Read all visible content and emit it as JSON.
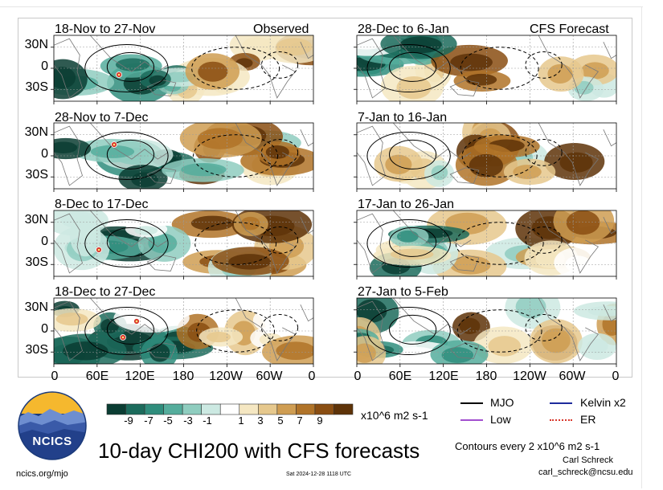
{
  "panels": [
    {
      "title": "18-Nov to 27-Nov",
      "tag": "Observed",
      "seed": 11,
      "bias": -0.9
    },
    {
      "title": "28-Dec to 6-Jan",
      "tag": "CFS Forecast",
      "seed": 21,
      "bias": 0.3
    },
    {
      "title": "28-Nov to 7-Dec",
      "tag": "",
      "seed": 31,
      "bias": -0.7
    },
    {
      "title": "7-Jan to 16-Jan",
      "tag": "",
      "seed": 41,
      "bias": 0.4
    },
    {
      "title": "8-Dec to 17-Dec",
      "tag": "",
      "seed": 51,
      "bias": -0.5
    },
    {
      "title": "17-Jan to 26-Jan",
      "tag": "",
      "seed": 61,
      "bias": 0.6
    },
    {
      "title": "18-Dec to 27-Dec",
      "tag": "",
      "seed": 71,
      "bias": -0.2
    },
    {
      "title": "27-Jan to 5-Feb",
      "tag": "",
      "seed": 81,
      "bias": 0.7
    }
  ],
  "y_ticks": [
    "30N",
    "0",
    "30S"
  ],
  "x_ticks": [
    "0",
    "60E",
    "120E",
    "180",
    "120W",
    "60W",
    "0"
  ],
  "colorbar": {
    "labels": [
      "-9",
      "-7",
      "-5",
      "-3",
      "-1",
      "1",
      "3",
      "5",
      "7",
      "9"
    ],
    "colors": [
      "#0b3d33",
      "#1c6b5c",
      "#2f8d7c",
      "#55ad9c",
      "#8fcdbf",
      "#cce9e2",
      "#ffffff",
      "#f5e7c2",
      "#e6c88d",
      "#cf9d52",
      "#b07328",
      "#8a4e12",
      "#5e3308"
    ],
    "units": "x10^6 m2 s-1"
  },
  "legend": [
    {
      "label": "MJO",
      "color": "#000000",
      "style": "solid"
    },
    {
      "label": "Kelvin x2",
      "color": "#1e2b9c",
      "style": "solid"
    },
    {
      "label": "Low",
      "color": "#a24fcf",
      "style": "solid"
    },
    {
      "label": "ER",
      "color": "#d8362b",
      "style": "dotted"
    }
  ],
  "logo_text": "NCICS",
  "main_title": "10-day CHI200 with CFS forecasts",
  "contour_note": "Contours every 2 x10^6 m2 s-1",
  "author": "Carl Schreck",
  "email": "carl_schreck@ncsu.edu",
  "url": "ncics.org/mjo",
  "timestamp": "Sat 2024-12-28 1118 UTC"
}
